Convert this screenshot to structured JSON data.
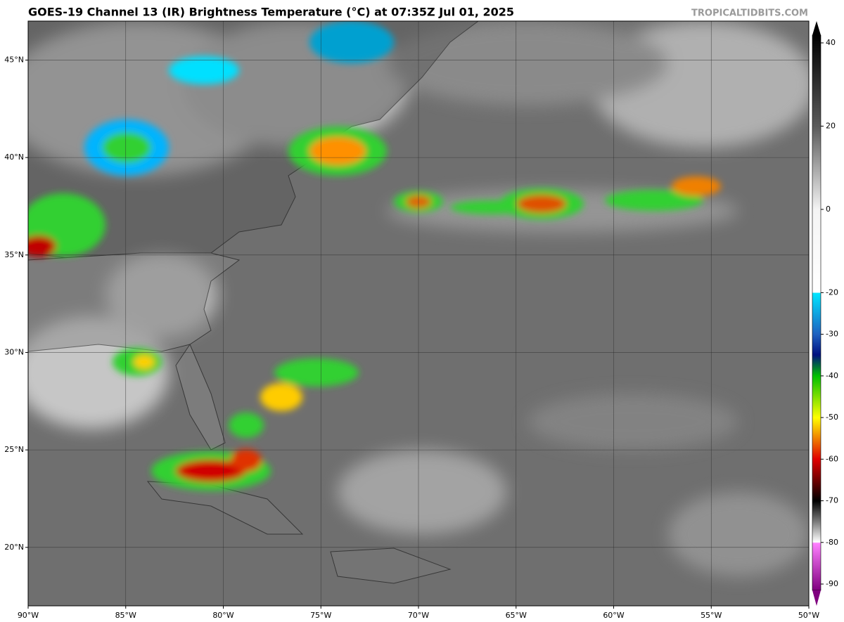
{
  "header": {
    "title": "GOES-19 Channel 13 (IR) Brightness Temperature (°C) at 07:35Z Jul 01, 2025",
    "credit": "TROPICALTIDBITS.COM"
  },
  "map": {
    "lon_range": [
      -90,
      -50
    ],
    "lat_range": [
      17,
      47
    ],
    "lon_ticks": [
      {
        "value": -90,
        "label": "90°W"
      },
      {
        "value": -85,
        "label": "85°W"
      },
      {
        "value": -80,
        "label": "80°W"
      },
      {
        "value": -75,
        "label": "75°W"
      },
      {
        "value": -70,
        "label": "70°W"
      },
      {
        "value": -65,
        "label": "65°W"
      },
      {
        "value": -60,
        "label": "60°W"
      },
      {
        "value": -55,
        "label": "55°W"
      },
      {
        "value": -50,
        "label": "50°W"
      }
    ],
    "lat_ticks": [
      {
        "value": 20,
        "label": "20°N"
      },
      {
        "value": 25,
        "label": "25°N"
      },
      {
        "value": 30,
        "label": "30°N"
      },
      {
        "value": 35,
        "label": "35°N"
      },
      {
        "value": 40,
        "label": "40°N"
      },
      {
        "value": 45,
        "label": "45°N"
      }
    ]
  },
  "colorbar": {
    "range": [
      -90,
      40
    ],
    "ticks": [
      40,
      20,
      0,
      -20,
      -30,
      -40,
      -50,
      -60,
      -70,
      -80,
      -90
    ]
  }
}
